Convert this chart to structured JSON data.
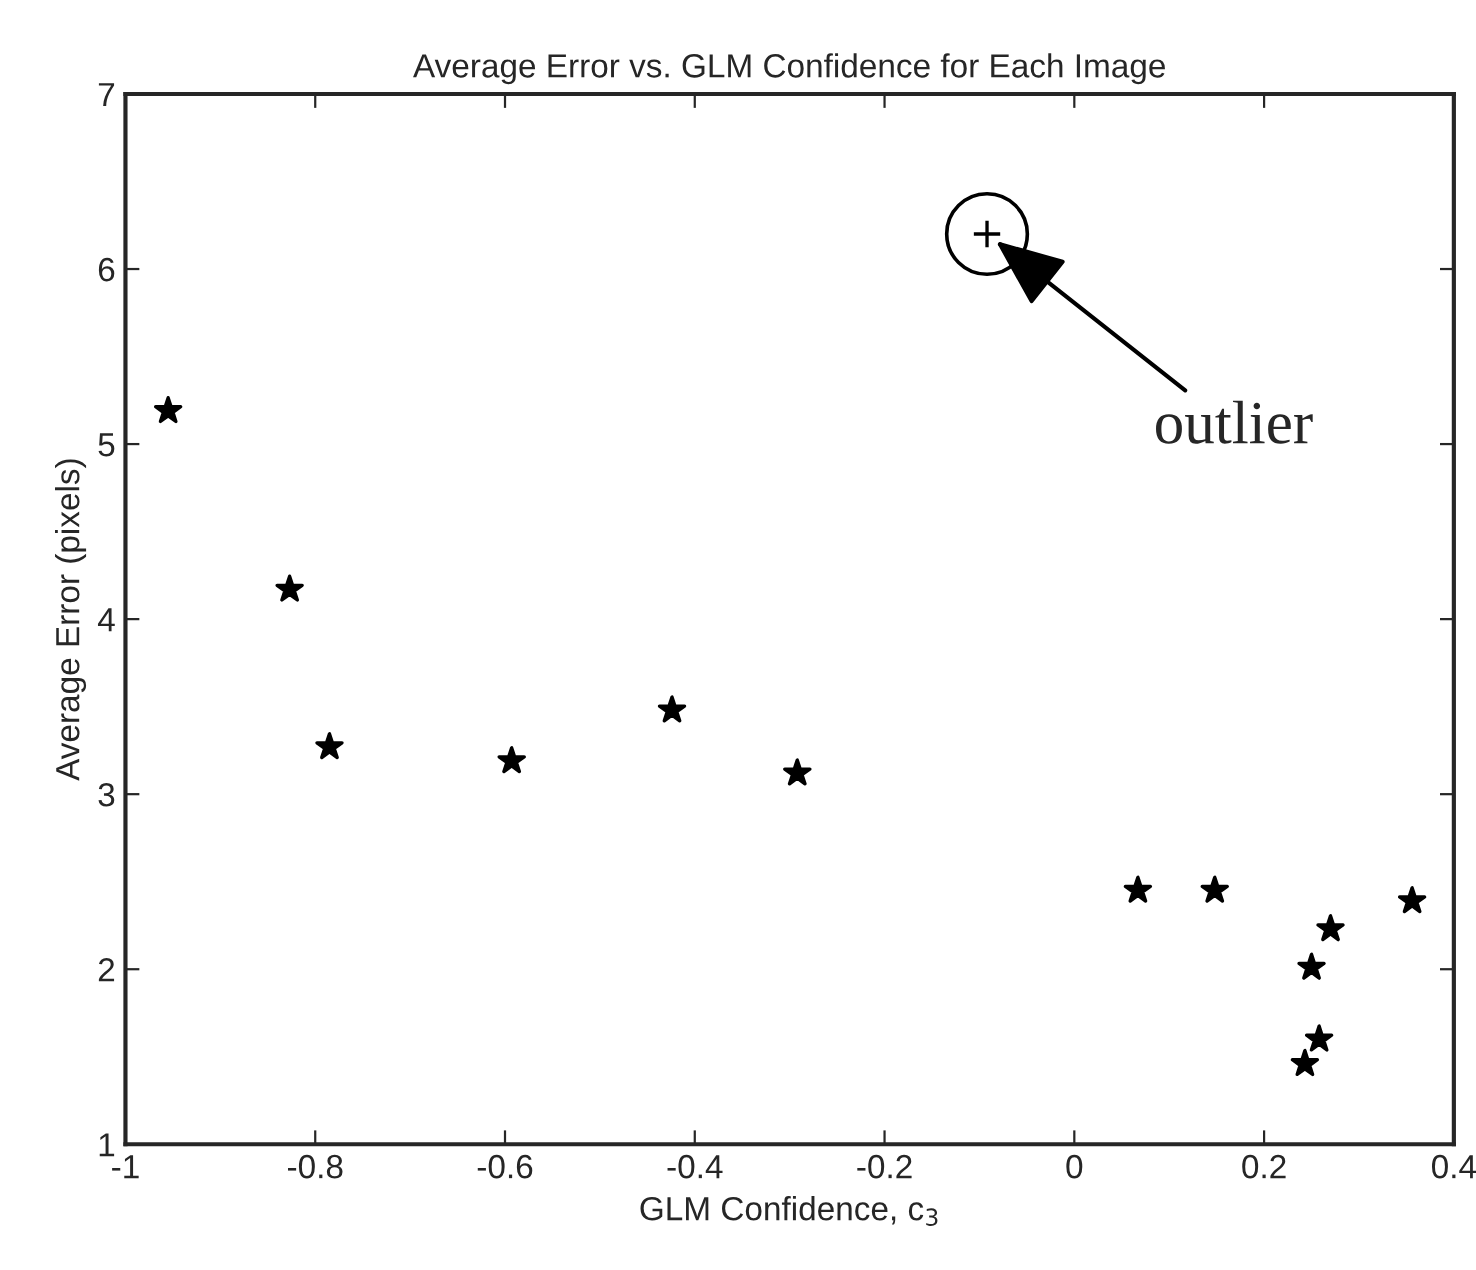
{
  "chart_data": {
    "type": "scatter",
    "title": "Average Error vs. GLM Confidence for Each Image",
    "xlabel": "GLM Confidence, c$_{3}$",
    "ylabel": "Average Error (pixels)",
    "series": [
      {
        "color": "#000000",
        "marker": "star",
        "x": [
          -0.955,
          -0.827,
          -0.785,
          -0.593,
          -0.424,
          -0.292,
          0.067,
          0.148,
          0.356,
          0.27,
          0.25,
          0.258,
          0.243
        ],
        "values": [
          5.19,
          4.17,
          3.27,
          3.19,
          3.48,
          3.12,
          2.45,
          2.45,
          2.39,
          2.23,
          2.01,
          1.6,
          1.46
        ]
      },
      {
        "color": "#000000",
        "x": [
          -0.092
        ],
        "values": [
          6.2
        ]
      }
    ],
    "annotations": [
      {
        "text": "outlier",
        "x": -0.092,
        "y": 6.2
      }
    ],
    "xlim": [
      -1,
      0.4
    ],
    "ylim": [
      1,
      7
    ],
    "xticks": [
      -1,
      -0.8,
      -0.6,
      -0.4,
      -0.2,
      0,
      0.2,
      0.4
    ],
    "yticks": [
      1,
      2,
      3,
      4,
      5,
      6,
      7
    ],
    "grid": false
  }
}
